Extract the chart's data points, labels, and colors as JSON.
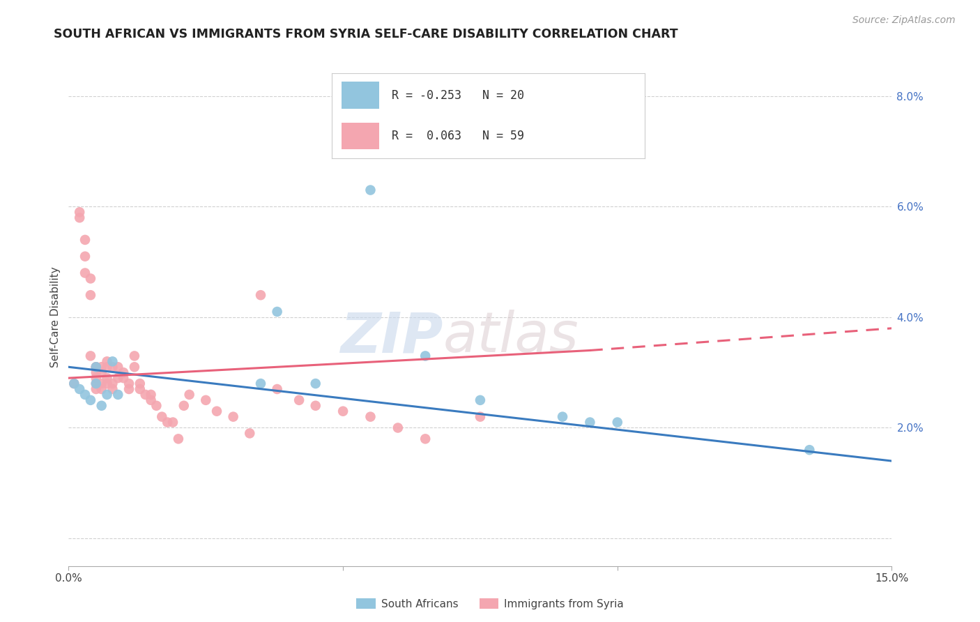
{
  "title": "SOUTH AFRICAN VS IMMIGRANTS FROM SYRIA SELF-CARE DISABILITY CORRELATION CHART",
  "source": "Source: ZipAtlas.com",
  "ylabel": "Self-Care Disability",
  "xlim": [
    0.0,
    0.15
  ],
  "ylim": [
    -0.005,
    0.085
  ],
  "south_african_color": "#92c5de",
  "syria_color": "#f4a6b0",
  "south_african_line_color": "#3a7bbf",
  "syria_line_color": "#e8617a",
  "R_sa": -0.253,
  "N_sa": 20,
  "R_syria": 0.063,
  "N_syria": 59,
  "south_african_x": [
    0.001,
    0.002,
    0.003,
    0.004,
    0.005,
    0.005,
    0.006,
    0.007,
    0.008,
    0.009,
    0.035,
    0.038,
    0.045,
    0.055,
    0.065,
    0.075,
    0.09,
    0.095,
    0.1,
    0.135
  ],
  "south_african_y": [
    0.028,
    0.027,
    0.026,
    0.025,
    0.028,
    0.031,
    0.024,
    0.026,
    0.032,
    0.026,
    0.028,
    0.041,
    0.028,
    0.063,
    0.033,
    0.025,
    0.022,
    0.021,
    0.021,
    0.016
  ],
  "syria_x": [
    0.001,
    0.002,
    0.002,
    0.003,
    0.003,
    0.003,
    0.004,
    0.004,
    0.004,
    0.005,
    0.005,
    0.005,
    0.005,
    0.005,
    0.005,
    0.006,
    0.006,
    0.006,
    0.006,
    0.007,
    0.007,
    0.007,
    0.007,
    0.008,
    0.008,
    0.008,
    0.009,
    0.009,
    0.01,
    0.01,
    0.011,
    0.011,
    0.012,
    0.012,
    0.013,
    0.013,
    0.014,
    0.015,
    0.015,
    0.016,
    0.017,
    0.018,
    0.019,
    0.02,
    0.021,
    0.022,
    0.025,
    0.027,
    0.03,
    0.033,
    0.035,
    0.038,
    0.042,
    0.045,
    0.05,
    0.055,
    0.06,
    0.065,
    0.075
  ],
  "syria_y": [
    0.028,
    0.058,
    0.059,
    0.048,
    0.051,
    0.054,
    0.044,
    0.047,
    0.033,
    0.03,
    0.031,
    0.031,
    0.029,
    0.028,
    0.027,
    0.031,
    0.03,
    0.028,
    0.027,
    0.031,
    0.032,
    0.029,
    0.028,
    0.028,
    0.031,
    0.027,
    0.031,
    0.029,
    0.029,
    0.03,
    0.028,
    0.027,
    0.033,
    0.031,
    0.028,
    0.027,
    0.026,
    0.025,
    0.026,
    0.024,
    0.022,
    0.021,
    0.021,
    0.018,
    0.024,
    0.026,
    0.025,
    0.023,
    0.022,
    0.019,
    0.044,
    0.027,
    0.025,
    0.024,
    0.023,
    0.022,
    0.02,
    0.018,
    0.022
  ],
  "watermark_zip": "ZIP",
  "watermark_atlas": "atlas",
  "legend_entries": [
    "South Africans",
    "Immigrants from Syria"
  ],
  "background_color": "#ffffff",
  "grid_color": "#d0d0d0",
  "right_yticks": [
    0.0,
    0.02,
    0.04,
    0.06,
    0.08
  ],
  "right_yticklabels": [
    "",
    "2.0%",
    "4.0%",
    "6.0%",
    "8.0%"
  ],
  "sa_line_x0": 0.0,
  "sa_line_x1": 0.15,
  "sa_line_y0": 0.031,
  "sa_line_y1": 0.014,
  "sy_line_x0": 0.0,
  "sy_line_x1": 0.095,
  "sy_line_x2": 0.15,
  "sy_line_y0": 0.029,
  "sy_line_y1": 0.034,
  "sy_line_y2": 0.038
}
